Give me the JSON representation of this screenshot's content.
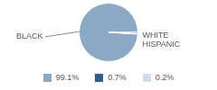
{
  "chart_data": {
    "type": "pie",
    "categories": [
      "BLACK",
      "WHITE",
      "HISPANIC"
    ],
    "values": [
      99.1,
      0.7,
      0.2
    ],
    "value_labels": [
      "99.1%",
      "0.7%",
      "0.2%"
    ],
    "colors": [
      "#8ba9c4",
      "#2f5f8a",
      "#cddde9"
    ]
  }
}
